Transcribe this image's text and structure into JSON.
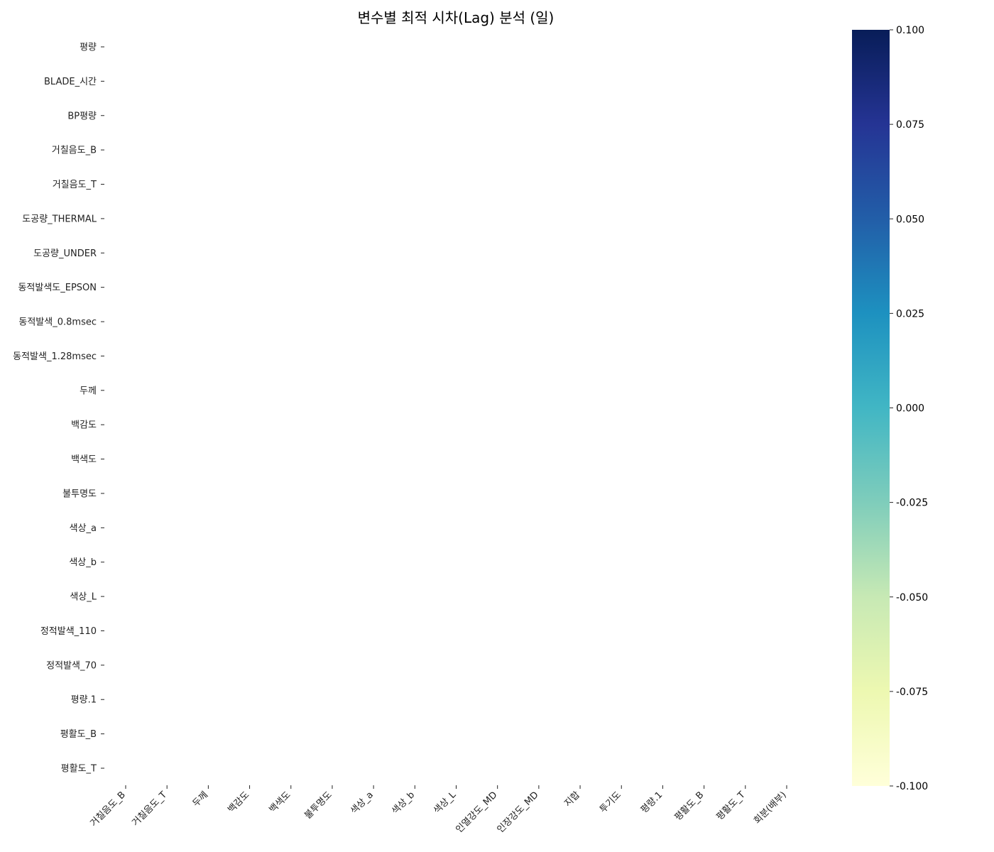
{
  "chart_data": {
    "type": "heatmap",
    "title": "변수별 최적 시차(Lag) 분석 (일)",
    "xlabel": "",
    "ylabel": "",
    "x_categories": [
      "거칠음도_B",
      "거칠음도_T",
      "두께",
      "백감도",
      "백색도",
      "불투명도",
      "색상_a",
      "색상_b",
      "색상_L",
      "인열강도_MD",
      "인장강도_MD",
      "지합",
      "투기도",
      "평량.1",
      "평활도_B",
      "평활도_T",
      "회분(배부)"
    ],
    "y_categories": [
      "평량",
      "BLADE_시간",
      "BP평량",
      "거칠음도_B",
      "거칠음도_T",
      "도공량_THERMAL",
      "도공량_UNDER",
      "동적발색도_EPSON",
      "동적발색_0.8msec",
      "동적발색_1.28msec",
      "두께",
      "백감도",
      "백색도",
      "불투명도",
      "색상_a",
      "색상_b",
      "색상_L",
      "정적발색_110",
      "정적발색_70",
      "평량.1",
      "평활도_B",
      "평활도_T"
    ],
    "values": [],
    "colormap": "YlGnBu",
    "colorbar": {
      "range": [
        -0.1,
        0.1
      ],
      "ticks": [
        0.1,
        0.075,
        0.05,
        0.025,
        0.0,
        -0.025,
        -0.05,
        -0.075,
        -0.1
      ],
      "tick_labels": [
        "0.100",
        "0.075",
        "0.050",
        "0.025",
        "0.000",
        "-0.025",
        "-0.050",
        "-0.075",
        "-0.100"
      ]
    },
    "colors": [
      "#081d58",
      "#253494",
      "#225ea8",
      "#1d91c0",
      "#41b6c4",
      "#7fcdbb",
      "#c7e9b4",
      "#edf8b1",
      "#ffffd9"
    ],
    "grid": false
  }
}
